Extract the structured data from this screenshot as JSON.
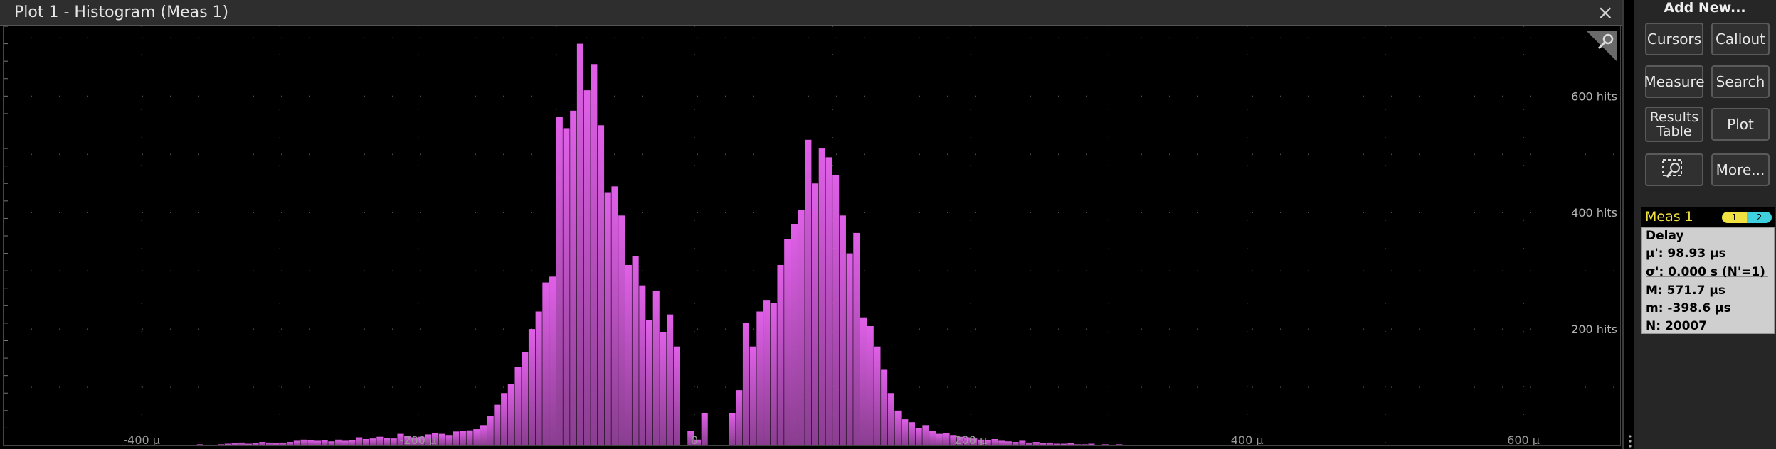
{
  "plot": {
    "title": "Plot 1 - Histogram (Meas 1)",
    "close_icon": "×",
    "background": "#000000",
    "bar_color": "#e060e8",
    "grid_color": "#5a5a5a"
  },
  "panel": {
    "add_new_title": "Add New...",
    "buttons": {
      "cursors": "Cursors",
      "callout": "Callout",
      "measure": "Measure",
      "search": "Search",
      "results_line1": "Results",
      "results_line2": "Table",
      "plot": "Plot",
      "more": "More..."
    }
  },
  "measurement": {
    "name": "Meas 1",
    "source1": "1",
    "source2": "2",
    "type": "Delay",
    "mean": "μ': 98.93 μs",
    "stddev": "σ': 0.000 s (N'=1)",
    "max": "M: 571.7 μs",
    "min": "m: -398.6 μs",
    "count": "N: 20007"
  },
  "chart_data": {
    "type": "bar",
    "xlabel": "",
    "ylabel": "",
    "xlim": [
      -500,
      670
    ],
    "ylim": [
      0,
      720
    ],
    "x_ticks": [
      {
        "value": -400,
        "label": "-400 μ"
      },
      {
        "value": -200,
        "label": "-200 μ"
      },
      {
        "value": 0,
        "label": "0"
      },
      {
        "value": 200,
        "label": "200 μ"
      },
      {
        "value": 400,
        "label": "400 μ"
      },
      {
        "value": 600,
        "label": "600 μ"
      }
    ],
    "y_ticks": [
      {
        "value": 200,
        "label": "200 hits"
      },
      {
        "value": 400,
        "label": "400 hits"
      },
      {
        "value": 600,
        "label": "600 hits"
      }
    ],
    "bin_width": 5,
    "bins_start": -400,
    "values": [
      1,
      0,
      1,
      0,
      1,
      1,
      0,
      1,
      2,
      1,
      1,
      2,
      3,
      4,
      5,
      3,
      4,
      6,
      5,
      4,
      5,
      6,
      8,
      10,
      9,
      8,
      9,
      7,
      10,
      8,
      9,
      14,
      11,
      12,
      15,
      13,
      12,
      20,
      16,
      14,
      15,
      19,
      22,
      20,
      18,
      24,
      25,
      26,
      28,
      35,
      50,
      70,
      90,
      105,
      135,
      160,
      200,
      230,
      280,
      290,
      565,
      545,
      575,
      690,
      610,
      655,
      550,
      435,
      445,
      395,
      310,
      325,
      275,
      215,
      265,
      195,
      225,
      170,
      0,
      25,
      10,
      55,
      0,
      0,
      0,
      55,
      95,
      210,
      170,
      230,
      250,
      245,
      310,
      355,
      380,
      405,
      525,
      450,
      510,
      495,
      465,
      395,
      330,
      365,
      220,
      205,
      170,
      130,
      90,
      60,
      45,
      40,
      30,
      35,
      25,
      20,
      22,
      18,
      15,
      14,
      12,
      10,
      9,
      11,
      8,
      7,
      6,
      8,
      5,
      6,
      4,
      5,
      3,
      3,
      4,
      2,
      2,
      3,
      1,
      2,
      1,
      2,
      1,
      0,
      1,
      1,
      0,
      1,
      0,
      0,
      1
    ]
  }
}
